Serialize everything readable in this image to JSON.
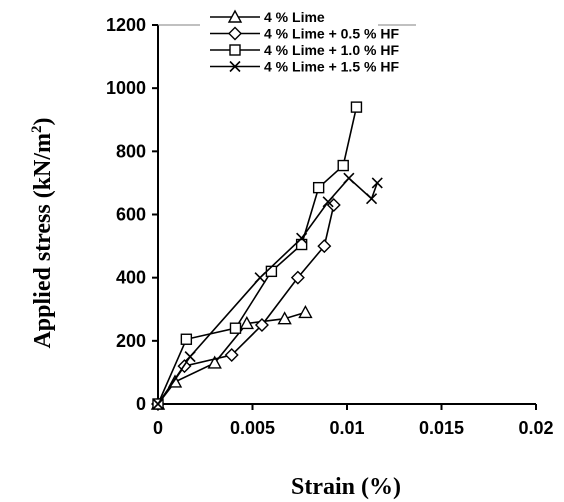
{
  "chart_data": {
    "type": "line",
    "xlabel": "Strain (%)",
    "ylabel_parts": {
      "base": "Applied stress (kN/m",
      "sup": "2",
      "close": ")"
    },
    "xlim": [
      0,
      0.02
    ],
    "ylim": [
      0,
      1200
    ],
    "xticks": [
      0,
      0.005,
      0.01,
      0.015,
      0.02
    ],
    "xtick_labels": [
      "0",
      "0.005",
      "0.01",
      "0.015",
      "0.02"
    ],
    "yticks": [
      0,
      200,
      400,
      600,
      800,
      1000,
      1200
    ],
    "ytick_labels": [
      "0",
      "200",
      "400",
      "600",
      "800",
      "1000",
      "1200"
    ],
    "grid": false,
    "legend_position": "top",
    "series": [
      {
        "name": "4 % Lime",
        "marker": "triangle",
        "x": [
          0,
          0.0009,
          0.003,
          0.0047,
          0.0067,
          0.0078
        ],
        "y": [
          0,
          70,
          130,
          255,
          270,
          290
        ]
      },
      {
        "name": "4 % Lime + 0.5 % HF",
        "marker": "diamond",
        "x": [
          0,
          0.0014,
          0.0039,
          0.0055,
          0.0074,
          0.0088,
          0.0093
        ],
        "y": [
          0,
          120,
          155,
          250,
          400,
          500,
          630
        ]
      },
      {
        "name": "4 % Lime + 1.0 % HF",
        "marker": "square",
        "x": [
          0,
          0.0015,
          0.0041,
          0.006,
          0.0076,
          0.0085,
          0.0098,
          0.0105
        ],
        "y": [
          0,
          205,
          240,
          420,
          505,
          685,
          755,
          940
        ]
      },
      {
        "name": "4 % Lime + 1.5 % HF",
        "marker": "cross",
        "x": [
          0,
          0.0017,
          0.0054,
          0.0076,
          0.009,
          0.0101,
          0.0113,
          0.0116
        ],
        "y": [
          0,
          150,
          400,
          525,
          640,
          715,
          650,
          700
        ]
      }
    ],
    "colors": {
      "line": "#000000",
      "background": "#ffffff",
      "legend_border": "#808080"
    }
  }
}
